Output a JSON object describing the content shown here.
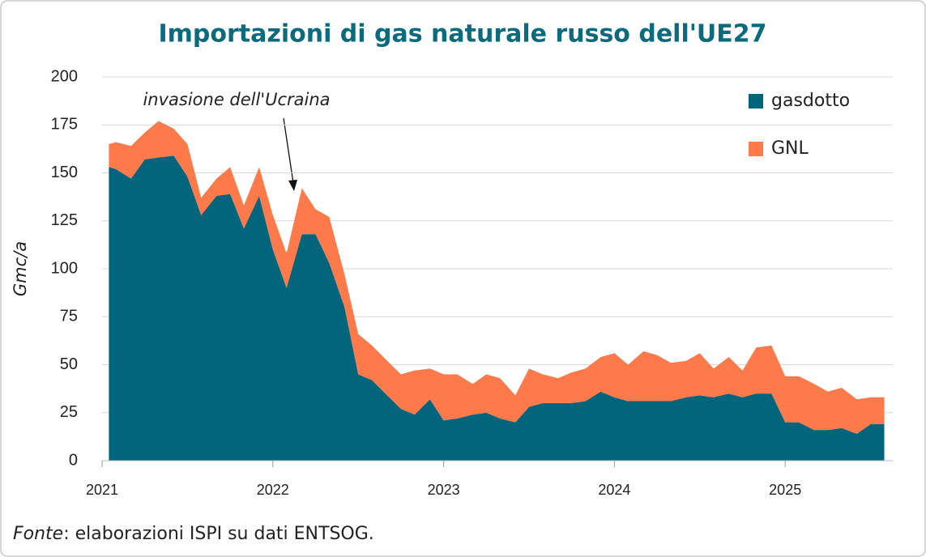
{
  "chart_data": {
    "type": "stacked_area",
    "title": "Importazioni di gas naturale russo dell'UE27",
    "y_label": "Gmc/a",
    "annotation": "invasione dell'Ucraina",
    "source_label": "Fonte",
    "source_text": ": elaborazioni ISPI su dati ENTSOG.",
    "legend": "upper right",
    "grid": true,
    "x": [
      2021.04,
      2021.08,
      2021.17,
      2021.25,
      2021.33,
      2021.42,
      2021.5,
      2021.58,
      2021.67,
      2021.75,
      2021.83,
      2021.92,
      2022.0,
      2022.08,
      2022.17,
      2022.25,
      2022.33,
      2022.42,
      2022.5,
      2022.58,
      2022.67,
      2022.75,
      2022.83,
      2022.92,
      2023.0,
      2023.08,
      2023.17,
      2023.25,
      2023.33,
      2023.42,
      2023.5,
      2023.58,
      2023.67,
      2023.75,
      2023.83,
      2023.92,
      2024.0,
      2024.08,
      2024.17,
      2024.25,
      2024.33,
      2024.42,
      2024.5,
      2024.58,
      2024.67,
      2024.75,
      2024.83,
      2024.92,
      2025.0,
      2025.08,
      2025.17,
      2025.25,
      2025.33,
      2025.42,
      2025.5,
      2025.58
    ],
    "series": [
      {
        "name": "gasdotto",
        "color": "#02657b",
        "values": [
          153,
          152,
          147,
          157,
          158,
          159,
          148,
          128,
          138,
          139,
          121,
          138,
          110,
          90,
          118,
          118,
          103,
          80,
          45,
          42,
          34,
          27,
          24,
          32,
          21,
          22,
          24,
          25,
          22,
          20,
          28,
          30,
          30,
          30,
          31,
          36,
          33,
          31,
          31,
          31,
          31,
          33,
          34,
          33,
          35,
          33,
          35,
          35,
          20,
          20,
          16,
          16,
          17,
          14,
          19,
          19
        ]
      },
      {
        "name": "GNL",
        "color": "#ff7a4a",
        "values": [
          12,
          14,
          17,
          14,
          19,
          14,
          17,
          9,
          9,
          14,
          12,
          15,
          18,
          18,
          24,
          13,
          24,
          17,
          21,
          18,
          18,
          18,
          23,
          16,
          24,
          23,
          16,
          20,
          21,
          14,
          20,
          15,
          13,
          16,
          17,
          18,
          23,
          19,
          26,
          24,
          20,
          19,
          22,
          15,
          19,
          14,
          24,
          25,
          24,
          24,
          24,
          20,
          21,
          18,
          14,
          14
        ]
      }
    ],
    "xlim": [
      2021,
      2025.63
    ],
    "xticks": [
      2021,
      2022,
      2023,
      2024,
      2025
    ],
    "ylim": [
      0,
      200
    ],
    "yticks": [
      0,
      25,
      50,
      75,
      100,
      125,
      150,
      175,
      200
    ]
  }
}
